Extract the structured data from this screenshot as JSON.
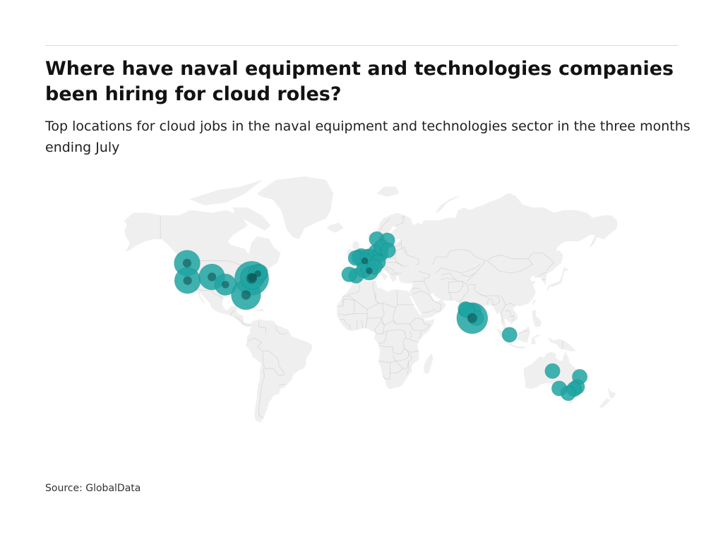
{
  "header": {
    "title": "Where have naval equipment and technologies companies been hiring for cloud roles?",
    "subtitle": "Top locations for cloud jobs in the naval equipment and technologies sector in the three months ending July"
  },
  "footer": {
    "source": "Source: GlobalData"
  },
  "map": {
    "projection": "miller",
    "land_color": "#efefef",
    "border_color": "#d6d6d6",
    "bubble_color": "#1fa5a2",
    "bubble_dark_color": "#0d4d4f",
    "locations": [
      {
        "lon": -122.3,
        "lat": 47.6,
        "size": 5
      },
      {
        "lon": -122.0,
        "lat": 37.5,
        "size": 5
      },
      {
        "lon": -104.9,
        "lat": 39.7,
        "size": 5
      },
      {
        "lon": -95.4,
        "lat": 35.0,
        "size": 3
      },
      {
        "lon": -77.0,
        "lat": 38.9,
        "size": 10
      },
      {
        "lon": -76.6,
        "lat": 39.3,
        "size": 4
      },
      {
        "lon": -81.0,
        "lat": 28.5,
        "size": 7
      },
      {
        "lon": -72.7,
        "lat": 41.6,
        "size": 2
      },
      {
        "lon": -71.0,
        "lat": 42.4,
        "size": 1
      },
      {
        "lon": -1.9,
        "lat": 50.8,
        "size": 1
      },
      {
        "lon": -0.1,
        "lat": 51.5,
        "size": 1
      },
      {
        "lon": -4.1,
        "lat": 50.4,
        "size": 1
      },
      {
        "lon": 2.3,
        "lat": 48.9,
        "size": 2
      },
      {
        "lon": 4.4,
        "lat": 51.2,
        "size": 1
      },
      {
        "lon": 6.8,
        "lat": 51.3,
        "size": 1
      },
      {
        "lon": 8.7,
        "lat": 50.1,
        "size": 1
      },
      {
        "lon": 10.0,
        "lat": 53.6,
        "size": 1
      },
      {
        "lon": 13.4,
        "lat": 52.5,
        "size": 1
      },
      {
        "lon": 11.6,
        "lat": 48.1,
        "size": 1
      },
      {
        "lon": 5.4,
        "lat": 43.3,
        "size": 2
      },
      {
        "lon": 1.4,
        "lat": 43.6,
        "size": 1
      },
      {
        "lon": -3.7,
        "lat": 40.4,
        "size": 1
      },
      {
        "lon": -8.6,
        "lat": 41.2,
        "size": 1
      },
      {
        "lon": 9.2,
        "lat": 45.5,
        "size": 1
      },
      {
        "lon": 10.7,
        "lat": 59.9,
        "size": 1
      },
      {
        "lon": 18.1,
        "lat": 59.3,
        "size": 1
      },
      {
        "lon": 14.0,
        "lat": 56.0,
        "size": 1
      },
      {
        "lon": 18.6,
        "lat": 54.4,
        "size": 1
      },
      {
        "lon": 72.9,
        "lat": 19.1,
        "size": 1
      },
      {
        "lon": 77.6,
        "lat": 12.9,
        "size": 8
      },
      {
        "lon": 78.5,
        "lat": 17.4,
        "size": 1
      },
      {
        "lon": 80.3,
        "lat": 13.1,
        "size": 1
      },
      {
        "lon": 73.9,
        "lat": 18.5,
        "size": 1
      },
      {
        "lon": 103.8,
        "lat": 1.35,
        "size": 1
      },
      {
        "lon": 133.9,
        "lat": -23.7,
        "size": 1
      },
      {
        "lon": 153.0,
        "lat": -27.5,
        "size": 1
      },
      {
        "lon": 151.2,
        "lat": -33.9,
        "size": 1
      },
      {
        "lon": 149.1,
        "lat": -35.3,
        "size": 1
      },
      {
        "lon": 144.96,
        "lat": -37.8,
        "size": 1
      },
      {
        "lon": 138.6,
        "lat": -34.9,
        "size": 1
      }
    ]
  }
}
